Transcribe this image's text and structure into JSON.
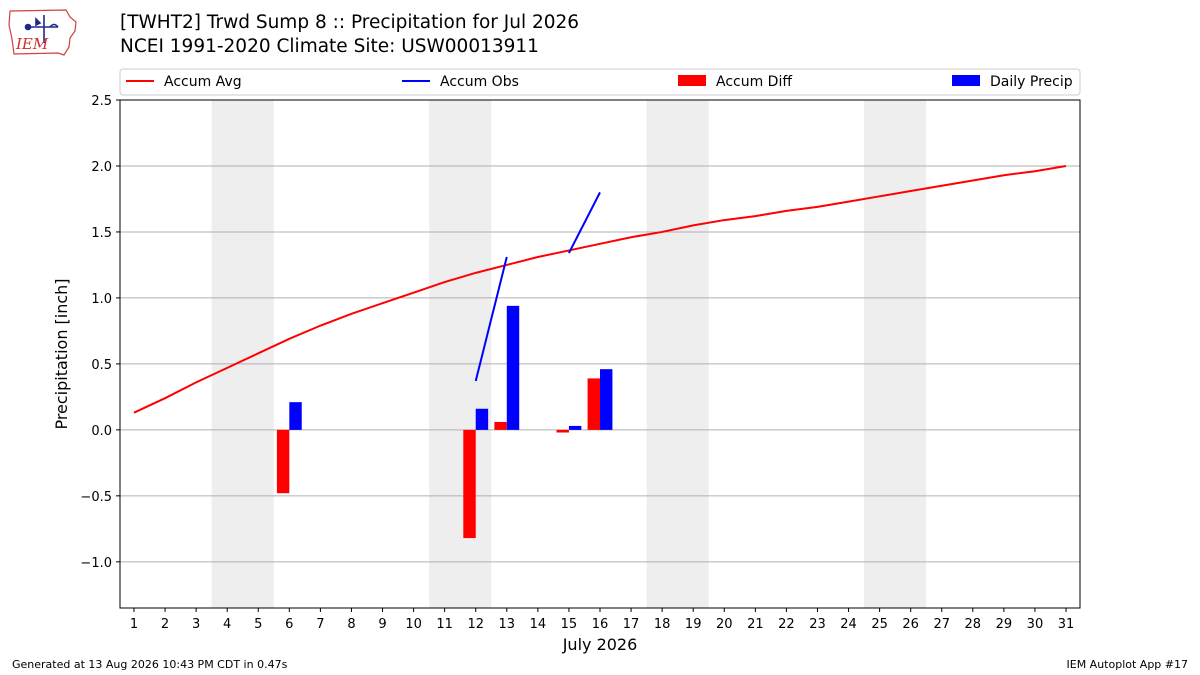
{
  "logo": {
    "text": "IEM"
  },
  "header": {
    "title_line1": "[TWHT2] Trwd Sump 8 :: Precipitation for Jul 2026",
    "title_line2": "NCEI 1991-2020 Climate Site: USW00013911"
  },
  "footer": {
    "left": "Generated at 13 Aug 2026 10:43 PM CDT in 0.47s",
    "right": "IEM Autoplot App #17"
  },
  "colors": {
    "avg": "#ff0000",
    "obs": "#0000ff",
    "diff": "#ff0000",
    "daily": "#0000ff",
    "weekend_shade": "#eeeeee",
    "grid": "#b0b0b0"
  },
  "chart_data": {
    "type": "bar",
    "xlabel": "July 2026",
    "ylabel": "Precipitation [inch]",
    "ylim": [
      -1.35,
      2.5
    ],
    "yticks": [
      -1.0,
      -0.5,
      0.0,
      0.5,
      1.0,
      1.5,
      2.0,
      2.5
    ],
    "ytick_labels": [
      "−1.0",
      "−0.5",
      "0.0",
      "0.5",
      "1.0",
      "1.5",
      "2.0",
      "2.5"
    ],
    "x": [
      1,
      2,
      3,
      4,
      5,
      6,
      7,
      8,
      9,
      10,
      11,
      12,
      13,
      14,
      15,
      16,
      17,
      18,
      19,
      20,
      21,
      22,
      23,
      24,
      25,
      26,
      27,
      28,
      29,
      30,
      31
    ],
    "xtick_labels": [
      "1",
      "2",
      "3",
      "4",
      "5",
      "6",
      "7",
      "8",
      "9",
      "10",
      "11",
      "12",
      "13",
      "14",
      "15",
      "16",
      "17",
      "18",
      "19",
      "20",
      "21",
      "22",
      "23",
      "24",
      "25",
      "26",
      "27",
      "28",
      "29",
      "30",
      "31"
    ],
    "grid": "horizontal",
    "legend": {
      "placement": "top",
      "entries": [
        "Accum Avg",
        "Accum Obs",
        "Accum Diff",
        "Daily Precip"
      ]
    },
    "shaded_weekends": [
      [
        4,
        5
      ],
      [
        11,
        12
      ],
      [
        18,
        19
      ],
      [
        25,
        26
      ]
    ],
    "series": [
      {
        "name": "Accum Avg",
        "kind": "line",
        "x": [
          1,
          2,
          3,
          4,
          5,
          6,
          7,
          8,
          9,
          10,
          11,
          12,
          13,
          14,
          15,
          16,
          17,
          18,
          19,
          20,
          21,
          22,
          23,
          24,
          25,
          26,
          27,
          28,
          29,
          30,
          31
        ],
        "values": [
          0.13,
          0.24,
          0.36,
          0.47,
          0.58,
          0.69,
          0.79,
          0.88,
          0.96,
          1.04,
          1.12,
          1.19,
          1.25,
          1.31,
          1.36,
          1.41,
          1.46,
          1.5,
          1.55,
          1.59,
          1.62,
          1.66,
          1.69,
          1.73,
          1.77,
          1.81,
          1.85,
          1.89,
          1.93,
          1.96,
          2.0
        ]
      },
      {
        "name": "Accum Obs",
        "kind": "line",
        "segments": [
          {
            "x": [
              12,
              13
            ],
            "values": [
              0.37,
              1.31
            ]
          },
          {
            "x": [
              15,
              16
            ],
            "values": [
              1.34,
              1.8
            ]
          }
        ]
      },
      {
        "name": "Accum Diff",
        "kind": "bar",
        "x": [
          6,
          12,
          13,
          15,
          16
        ],
        "values": [
          -0.48,
          -0.82,
          0.06,
          -0.02,
          0.39
        ]
      },
      {
        "name": "Daily Precip",
        "kind": "bar",
        "x": [
          6,
          12,
          13,
          15,
          16
        ],
        "values": [
          0.21,
          0.16,
          0.94,
          0.03,
          0.46
        ]
      }
    ]
  }
}
